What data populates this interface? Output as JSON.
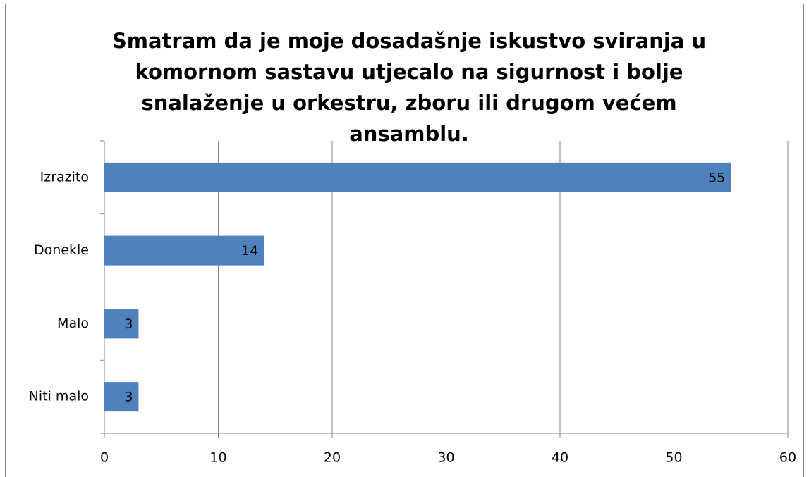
{
  "chart_data": {
    "type": "bar",
    "orientation": "horizontal",
    "title": "Smatram da je moje dosadašnje iskustvo sviranja u komornom sastavu utjecalo na sigurnost i bolje snalaženje u orkestru, zboru ili drugom većem ansamblu.",
    "categories": [
      "Izrazito",
      "Donekle",
      "Malo",
      "Niti malo"
    ],
    "values": [
      55,
      14,
      3,
      3
    ],
    "color": "#4f81bd",
    "xlim": [
      0,
      60
    ],
    "xticks": [
      0,
      10,
      20,
      30,
      40,
      50,
      60
    ],
    "grid": true
  }
}
